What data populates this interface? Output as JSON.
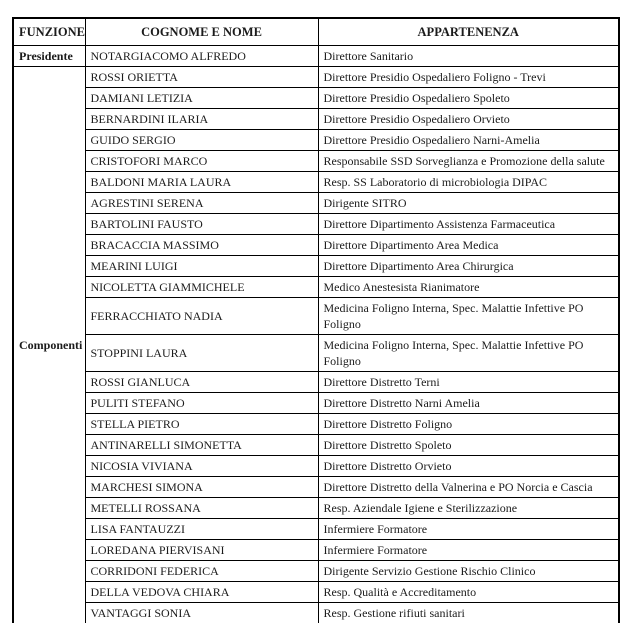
{
  "document": {
    "colors": {
      "background": "#ffffff",
      "border": "#000000",
      "text": "#1b1b1b"
    },
    "table": {
      "headers": [
        {
          "label": "FUNZIONE"
        },
        {
          "label": "COGNOME E NOME"
        },
        {
          "label": "APPARTENENZA"
        }
      ],
      "groups": [
        {
          "funzione": "Presidente",
          "members": [
            {
              "name": "NOTARGIACOMO ALFREDO",
              "affiliation": "Direttore Sanitario"
            }
          ]
        },
        {
          "funzione": "Componenti",
          "members": [
            {
              "name": "ROSSI ORIETTA",
              "affiliation": "Direttore Presidio Ospedaliero Foligno - Trevi"
            },
            {
              "name": "DAMIANI LETIZIA",
              "affiliation": "Direttore Presidio Ospedaliero Spoleto"
            },
            {
              "name": "BERNARDINI ILARIA",
              "affiliation": "Direttore Presidio Ospedaliero Orvieto"
            },
            {
              "name": "GUIDO SERGIO",
              "affiliation": "Direttore Presidio Ospedaliero Narni-Amelia"
            },
            {
              "name": "CRISTOFORI MARCO",
              "affiliation": "Responsabile SSD Sorveglianza e Promozione della salute"
            },
            {
              "name": "BALDONI MARIA LAURA",
              "affiliation": "Resp. SS Laboratorio di microbiologia DIPAC"
            },
            {
              "name": "AGRESTINI SERENA",
              "affiliation": "Dirigente SITRO"
            },
            {
              "name": "BARTOLINI FAUSTO",
              "affiliation": "Direttore Dipartimento Assistenza Farmaceutica"
            },
            {
              "name": "BRACACCIA MASSIMO",
              "affiliation": "Direttore Dipartimento Area Medica"
            },
            {
              "name": "MEARINI LUIGI",
              "affiliation": "Direttore Dipartimento Area Chirurgica"
            },
            {
              "name": "NICOLETTA GIAMMICHELE",
              "affiliation": "Medico Anestesista Rianimatore"
            },
            {
              "name": "FERRACCHIATO NADIA",
              "affiliation": "Medicina Foligno Interna, Spec. Malattie Infettive PO Foligno"
            },
            {
              "name": "STOPPINI LAURA",
              "affiliation": "Medicina Foligno Interna, Spec. Malattie Infettive PO Foligno"
            },
            {
              "name": "ROSSI GIANLUCA",
              "affiliation": "Direttore Distretto Terni"
            },
            {
              "name": "PULITI STEFANO",
              "affiliation": "Direttore Distretto Narni Amelia"
            },
            {
              "name": "STELLA PIETRO",
              "affiliation": "Direttore Distretto Foligno"
            },
            {
              "name": "ANTINARELLI SIMONETTA",
              "affiliation": "Direttore Distretto Spoleto"
            },
            {
              "name": "NICOSIA VIVIANA",
              "affiliation": "Direttore Distretto Orvieto"
            },
            {
              "name": "MARCHESI SIMONA",
              "affiliation": "Direttore Distretto della Valnerina e PO Norcia e Cascia"
            },
            {
              "name": "METELLI ROSSANA",
              "affiliation": "Resp. Aziendale Igiene e Sterilizzazione"
            },
            {
              "name": "LISA FANTAUZZI",
              "affiliation": "Infermiere Formatore"
            },
            {
              "name": "LOREDANA PIERVISANI",
              "affiliation": "Infermiere Formatore"
            },
            {
              "name": "CORRIDONI FEDERICA",
              "affiliation": "Dirigente Servizio Gestione Rischio Clinico"
            },
            {
              "name": "DELLA VEDOVA CHIARA",
              "affiliation": "Resp. Qualità e Accreditamento"
            },
            {
              "name": "VANTAGGI SONIA",
              "affiliation": "Resp. Gestione rifiuti sanitari"
            }
          ]
        }
      ]
    }
  }
}
